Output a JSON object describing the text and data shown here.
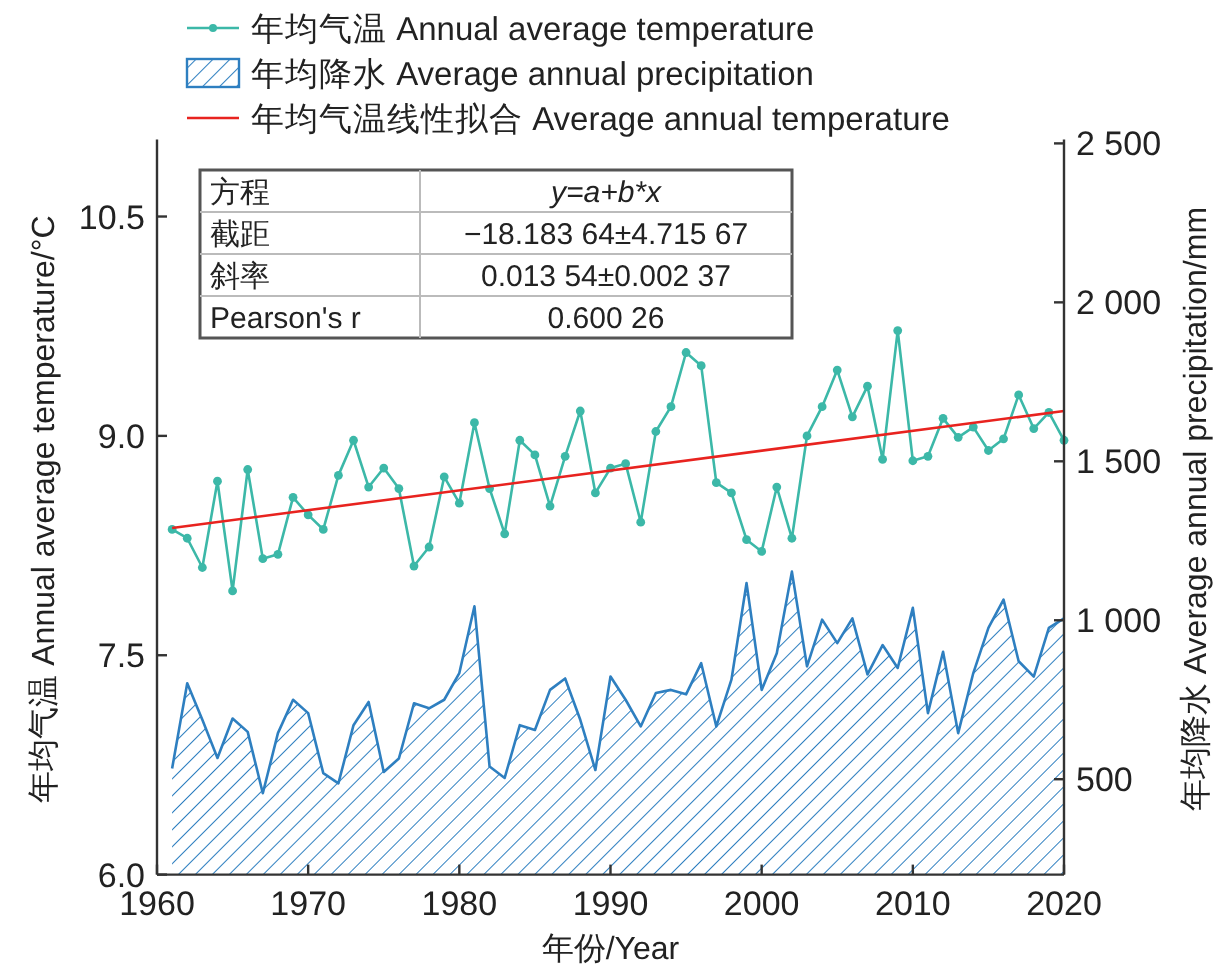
{
  "chart_data": {
    "type": "line",
    "xlabel": "年份/Year",
    "ylabel": "年均气温 Annual average temperature/°C",
    "y2label": "年均降水 Average annual precipitation/mm",
    "legend": "top",
    "xlim": [
      1960,
      2020
    ],
    "xticks": [
      1960,
      1970,
      1980,
      1990,
      2000,
      2010,
      2020
    ],
    "ylim": [
      6,
      11
    ],
    "yticks": [
      {
        "value": 6,
        "label": "6.0"
      },
      7.5,
      {
        "value": 9,
        "label": "9.0"
      },
      10.5
    ],
    "y2lim": [
      200,
      2500
    ],
    "y2ticks": [
      500,
      {
        "value": 1000,
        "label": "1 000"
      },
      {
        "value": 1500,
        "label": "1 500"
      },
      {
        "value": 2000,
        "label": "2 000"
      },
      {
        "value": 2500,
        "label": "2 500"
      }
    ],
    "x": [
      1961,
      1962,
      1963,
      1964,
      1965,
      1966,
      1967,
      1968,
      1969,
      1970,
      1971,
      1972,
      1973,
      1974,
      1975,
      1976,
      1977,
      1978,
      1979,
      1980,
      1981,
      1982,
      1983,
      1984,
      1985,
      1986,
      1987,
      1988,
      1989,
      1990,
      1991,
      1992,
      1993,
      1994,
      1995,
      1996,
      1997,
      1998,
      1999,
      2000,
      2001,
      2002,
      2003,
      2004,
      2005,
      2006,
      2007,
      2008,
      2009,
      2010,
      2011,
      2012,
      2013,
      2014,
      2015,
      2016,
      2017,
      2018,
      2019,
      2020
    ],
    "series": [
      {
        "name": "年均气温 Annual average temperature",
        "type": "line",
        "marker": "circle",
        "color": "#3cb8a8",
        "values": [
          8.36,
          8.3,
          8.1,
          8.69,
          7.94,
          8.77,
          8.16,
          8.19,
          8.58,
          8.46,
          8.36,
          8.73,
          8.97,
          8.65,
          8.78,
          8.64,
          8.11,
          8.24,
          8.72,
          8.54,
          9.09,
          8.64,
          8.33,
          8.97,
          8.87,
          8.52,
          8.86,
          9.17,
          8.61,
          8.78,
          8.81,
          8.41,
          9.03,
          9.2,
          9.57,
          9.48,
          8.68,
          8.61,
          8.29,
          8.21,
          8.65,
          8.3,
          9.0,
          9.2,
          9.45,
          9.13,
          9.34,
          8.84,
          9.72,
          8.83,
          8.86,
          9.12,
          8.99,
          9.06,
          8.9,
          8.98,
          9.28,
          9.05,
          9.16,
          8.97
        ]
      },
      {
        "name": "年均降水 Average annual precipitation",
        "type": "area",
        "axis": "y2",
        "color": "#2e7fc0",
        "values": [
          534,
          802,
          687,
          567,
          691,
          649,
          456,
          645,
          750,
          708,
          519,
          487,
          670,
          743,
          523,
          565,
          739,
          723,
          750,
          834,
          1044,
          540,
          504,
          670,
          655,
          781,
          817,
          687,
          529,
          823,
          750,
          666,
          771,
          781,
          767,
          865,
          666,
          813,
          1117,
          781,
          896,
          1153,
          855,
          1002,
          928,
          1006,
          830,
          922,
          850,
          1039,
          708,
          901,
          645,
          834,
          976,
          1065,
          871,
          823,
          976,
          1006
        ]
      },
      {
        "name": "年均气温线性拟合 Average annual temperature",
        "type": "line",
        "color": "#e8231f",
        "x": [
          1961,
          2020
        ],
        "values": [
          8.37,
          9.17
        ]
      }
    ],
    "annotations": [
      "方程",
      "y=a+b*x",
      "截距",
      "−18.183 64±4.715 67",
      "斜率",
      "0.013 54±0.002 37",
      "Pearson's r",
      "0.600 26"
    ]
  }
}
